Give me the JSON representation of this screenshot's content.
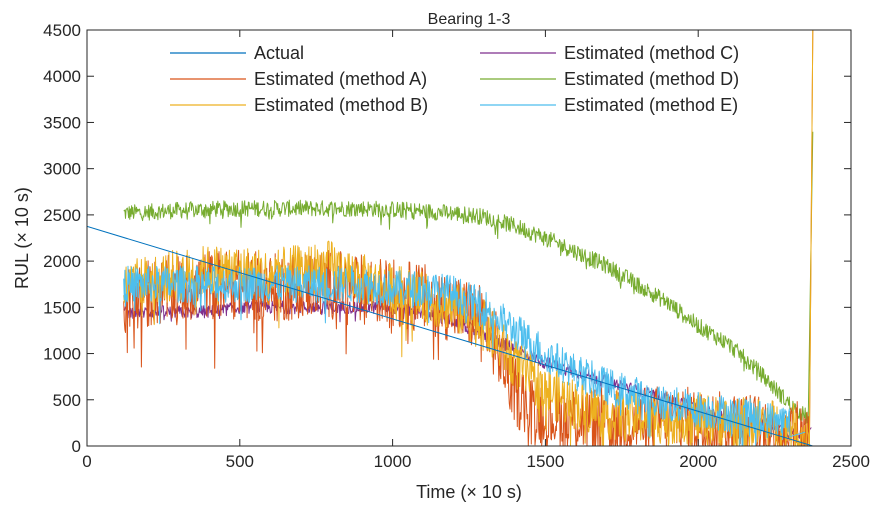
{
  "chart_data": {
    "type": "line",
    "title": "Bearing 1-3",
    "xlabel": "Time (× 10 s)",
    "ylabel": "RUL (× 10 s)",
    "xlim": [
      0,
      2500
    ],
    "ylim": [
      0,
      4500
    ],
    "xticks": [
      0,
      500,
      1000,
      1500,
      2000,
      2500
    ],
    "yticks": [
      0,
      500,
      1000,
      1500,
      2000,
      2500,
      3000,
      3500,
      4000,
      4500
    ],
    "grid": false,
    "legend_position": "top",
    "colors": {
      "actual": "#0072bd",
      "method_a": "#d95319",
      "method_b": "#edb120",
      "method_c": "#7e2f8e",
      "method_d": "#77ac30",
      "method_e": "#4dbeee"
    },
    "series": [
      {
        "name": "Actual",
        "key": "actual",
        "x": [
          0,
          2375
        ],
        "y": [
          2375,
          0
        ]
      },
      {
        "name": "Estimated (method A)",
        "key": "method_a",
        "x": [
          120,
          200,
          300,
          400,
          500,
          600,
          700,
          800,
          900,
          1000,
          1100,
          1200,
          1300,
          1350,
          1400,
          1450,
          1500,
          1600,
          1700,
          1800,
          1900,
          2000,
          2100,
          2200,
          2300,
          2365,
          2375
        ],
        "y": [
          1550,
          1650,
          1700,
          1750,
          1750,
          1700,
          1750,
          1750,
          1700,
          1650,
          1600,
          1500,
          1350,
          1000,
          600,
          400,
          350,
          300,
          250,
          250,
          300,
          250,
          200,
          200,
          150,
          100,
          4500
        ],
        "noise": 380
      },
      {
        "name": "Estimated (method B)",
        "key": "method_b",
        "x": [
          120,
          200,
          300,
          400,
          500,
          600,
          700,
          800,
          900,
          1000,
          1100,
          1200,
          1300,
          1400,
          1500,
          1600,
          1700,
          1800,
          1900,
          2000,
          2100,
          2200,
          2300,
          2365,
          2375
        ],
        "y": [
          1700,
          1800,
          1850,
          1900,
          1900,
          1850,
          1900,
          1950,
          1800,
          1700,
          1600,
          1500,
          1300,
          900,
          600,
          450,
          350,
          300,
          300,
          300,
          250,
          250,
          200,
          100,
          4500
        ],
        "noise": 280
      },
      {
        "name": "Estimated (method C)",
        "key": "method_c",
        "x": [
          120,
          200,
          300,
          400,
          500,
          600,
          700,
          800,
          900,
          1000,
          1100,
          1200,
          1300,
          1400,
          1500,
          1600,
          1700,
          1800,
          1900,
          2000,
          2100,
          2200,
          2300,
          2350,
          2370
        ],
        "y": [
          1450,
          1450,
          1450,
          1450,
          1500,
          1500,
          1500,
          1500,
          1500,
          1500,
          1450,
          1350,
          1200,
          1050,
          900,
          800,
          700,
          600,
          500,
          400,
          300,
          250,
          150,
          100,
          200
        ],
        "noise": 70
      },
      {
        "name": "Estimated (method D)",
        "key": "method_d",
        "x": [
          120,
          200,
          300,
          400,
          500,
          600,
          700,
          800,
          900,
          1000,
          1100,
          1200,
          1300,
          1400,
          1500,
          1600,
          1700,
          1800,
          1900,
          2000,
          2100,
          2200,
          2300,
          2360,
          2375
        ],
        "y": [
          2520,
          2530,
          2550,
          2560,
          2570,
          2570,
          2570,
          2570,
          2570,
          2560,
          2540,
          2520,
          2480,
          2380,
          2250,
          2100,
          1950,
          1750,
          1550,
          1300,
          1100,
          800,
          450,
          300,
          3400
        ],
        "noise": 90
      },
      {
        "name": "Estimated (method E)",
        "key": "method_e",
        "x": [
          120,
          200,
          300,
          400,
          500,
          600,
          700,
          800,
          900,
          1000,
          1100,
          1200,
          1300,
          1400,
          1500,
          1600,
          1700,
          1800,
          1900,
          2000,
          2100,
          2200,
          2300,
          2350
        ],
        "y": [
          1750,
          1750,
          1750,
          1750,
          1750,
          1750,
          1750,
          1750,
          1750,
          1700,
          1700,
          1650,
          1500,
          1250,
          1000,
          800,
          650,
          550,
          450,
          400,
          350,
          300,
          250,
          150
        ],
        "noise": 200
      }
    ]
  }
}
